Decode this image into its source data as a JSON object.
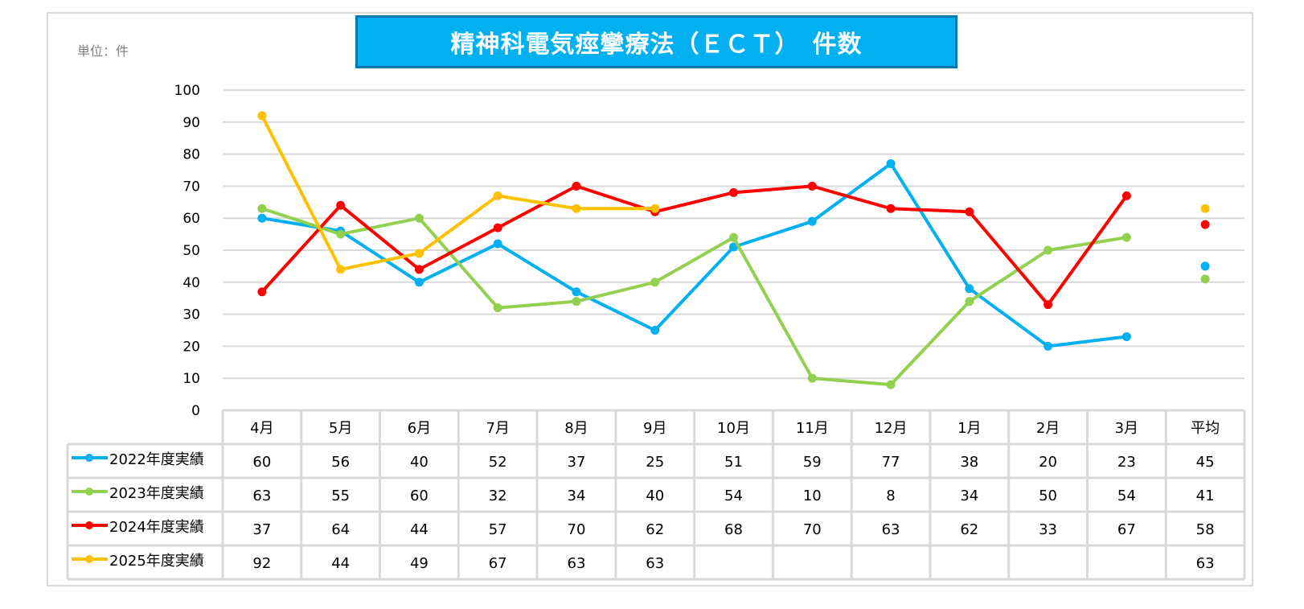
{
  "chart_data": {
    "type": "line",
    "title": "精神科電気痙攣療法（ＥＣＴ）　件数",
    "unit_label": "単位：件",
    "categories": [
      "4月",
      "5月",
      "6月",
      "7月",
      "8月",
      "9月",
      "10月",
      "11月",
      "12月",
      "1月",
      "2月",
      "3月"
    ],
    "average_label": "平均",
    "ylim": [
      0,
      100
    ],
    "yticks": [
      0,
      10,
      20,
      30,
      40,
      50,
      60,
      70,
      80,
      90,
      100
    ],
    "grid": true,
    "legend": "data-table-left",
    "series": [
      {
        "name": "2022年度実績",
        "color": "#00B0F0",
        "values": [
          60,
          56,
          40,
          52,
          37,
          25,
          51,
          59,
          77,
          38,
          20,
          23
        ],
        "average": 45
      },
      {
        "name": "2023年度実績",
        "color": "#92D050",
        "values": [
          63,
          55,
          60,
          32,
          34,
          40,
          54,
          10,
          8,
          34,
          50,
          54
        ],
        "average": 41
      },
      {
        "name": "2024年度実績",
        "color": "#FF0000",
        "values": [
          37,
          64,
          44,
          57,
          70,
          62,
          68,
          70,
          63,
          62,
          33,
          67
        ],
        "average": 58
      },
      {
        "name": "2025年度実績",
        "color": "#FFC000",
        "values": [
          92,
          44,
          49,
          67,
          63,
          63,
          null,
          null,
          null,
          null,
          null,
          null
        ],
        "average": 63
      }
    ]
  }
}
